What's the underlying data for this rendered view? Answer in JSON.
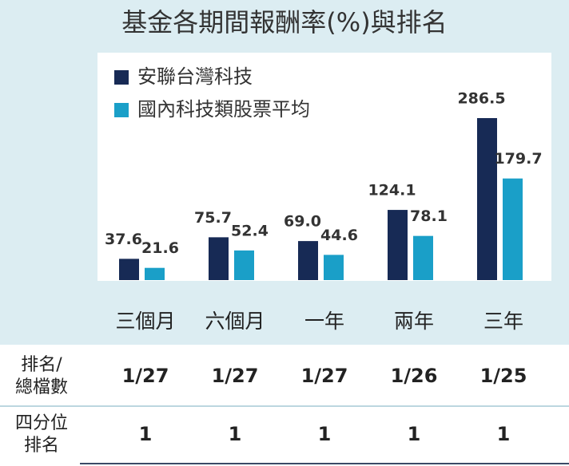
{
  "chart_data": {
    "type": "bar",
    "title": "基金各期間報酬率(%)與排名",
    "categories": [
      "三個月",
      "六個月",
      "一年",
      "兩年",
      "三年"
    ],
    "series": [
      {
        "name": "安聯台灣科技",
        "color": "#172a55",
        "values": [
          37.6,
          75.7,
          69.0,
          124.1,
          286.5
        ],
        "value_labels": [
          "37.6",
          "75.7",
          "69.0",
          "124.1",
          "286.5"
        ]
      },
      {
        "name": "國內科技類股票平均",
        "color": "#1a9fc8",
        "values": [
          21.6,
          52.4,
          44.6,
          78.1,
          179.7
        ],
        "value_labels": [
          "21.6",
          "52.4",
          "44.6",
          "78.1",
          "179.7"
        ]
      }
    ]
  },
  "table": {
    "rows": [
      {
        "header": [
          "排名/",
          "總檔數"
        ],
        "cells": [
          "1/27",
          "1/27",
          "1/27",
          "1/26",
          "1/25"
        ]
      },
      {
        "header": [
          "四分位",
          "排名"
        ],
        "cells": [
          "1",
          "1",
          "1",
          "1",
          "1"
        ]
      }
    ]
  }
}
